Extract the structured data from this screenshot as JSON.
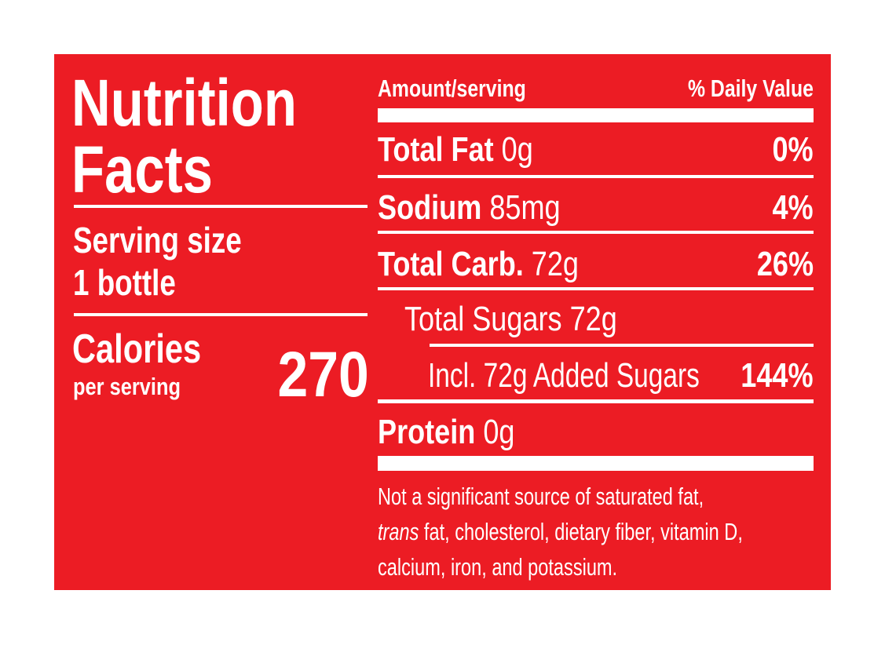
{
  "label": {
    "background_color": "#ec1c24",
    "text_color": "#ffffff",
    "title_line1": "Nutrition",
    "title_line2": "Facts",
    "serving_size_label": "Serving size",
    "serving_size_value": "1 bottle",
    "calories_label": "Calories",
    "calories_sub": "per serving",
    "calories_value": "270",
    "header_amount": "Amount/serving",
    "header_dv": "% Daily Value",
    "rows": [
      {
        "name": "Total Fat",
        "amount": "0g",
        "dv": "0%"
      },
      {
        "name": "Sodium",
        "amount": "85mg",
        "dv": "4%"
      },
      {
        "name": "Total Carb.",
        "amount": "72g",
        "dv": "26%"
      },
      {
        "name": "Total Sugars 72g"
      },
      {
        "name": "Incl. 72g Added Sugars",
        "dv": "144%"
      },
      {
        "name": "Protein",
        "amount": "0g"
      }
    ],
    "footnote_line1": "Not a significant source of saturated fat,",
    "footnote_trans": "trans",
    "footnote_line2": "fat, cholesterol, dietary fiber, vitamin D,",
    "footnote_line3": "calcium, iron, and potassium."
  }
}
